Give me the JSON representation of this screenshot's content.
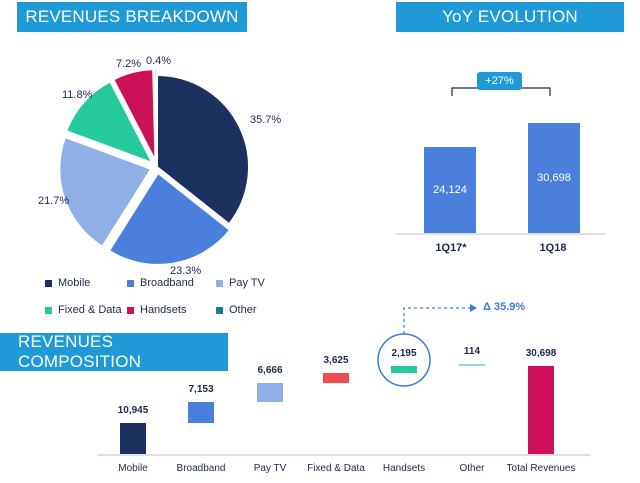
{
  "titles": {
    "breakdown": "REVENUES BREAKDOWN",
    "yoy": "YoY EVOLUTION",
    "composition": "REVENUES COMPOSITION"
  },
  "colors": {
    "mobile": "#1d3160",
    "broadband": "#4a7fdc",
    "paytv": "#8fb0e6",
    "fixed": "#26c99b",
    "handsets": "#cc1159",
    "other": "#1a7d8a",
    "accent": "#1f9ad6"
  },
  "chart_data": [
    {
      "type": "pie",
      "title": "REVENUES BREAKDOWN",
      "slices": [
        {
          "name": "Mobile",
          "value": 35.7,
          "label": "35.7%"
        },
        {
          "name": "Broadband",
          "value": 23.3,
          "label": "23.3%"
        },
        {
          "name": "Pay TV",
          "value": 21.7,
          "label": "21.7%"
        },
        {
          "name": "Fixed & Data",
          "value": 11.8,
          "label": "11.8%"
        },
        {
          "name": "Handsets",
          "value": 7.2,
          "label": "7.2%"
        },
        {
          "name": "Other",
          "value": 0.4,
          "label": "0.4%"
        }
      ],
      "legend": [
        "Mobile",
        "Broadband",
        "Pay TV",
        "Fixed & Data",
        "Handsets",
        "Other"
      ],
      "legend_placement": "bottom"
    },
    {
      "type": "bar",
      "title": "YoY EVOLUTION",
      "categories": [
        "1Q17*",
        "1Q18"
      ],
      "values": [
        24124,
        30698
      ],
      "value_labels": [
        "24,124",
        "30,698"
      ],
      "growth_label": "+27%"
    },
    {
      "type": "bar",
      "title": "REVENUES COMPOSITION",
      "subtype": "waterfall",
      "categories": [
        "Mobile",
        "Broadband",
        "Pay TV",
        "Fixed & Data",
        "Handsets",
        "Other",
        "Total Revenues"
      ],
      "values": [
        10945,
        7153,
        6666,
        3625,
        2195,
        114,
        30698
      ],
      "value_labels": [
        "10,945",
        "7,153",
        "6,666",
        "3,625",
        "2,195",
        "114",
        "30,698"
      ],
      "annotation": "Δ 35.9%"
    }
  ]
}
